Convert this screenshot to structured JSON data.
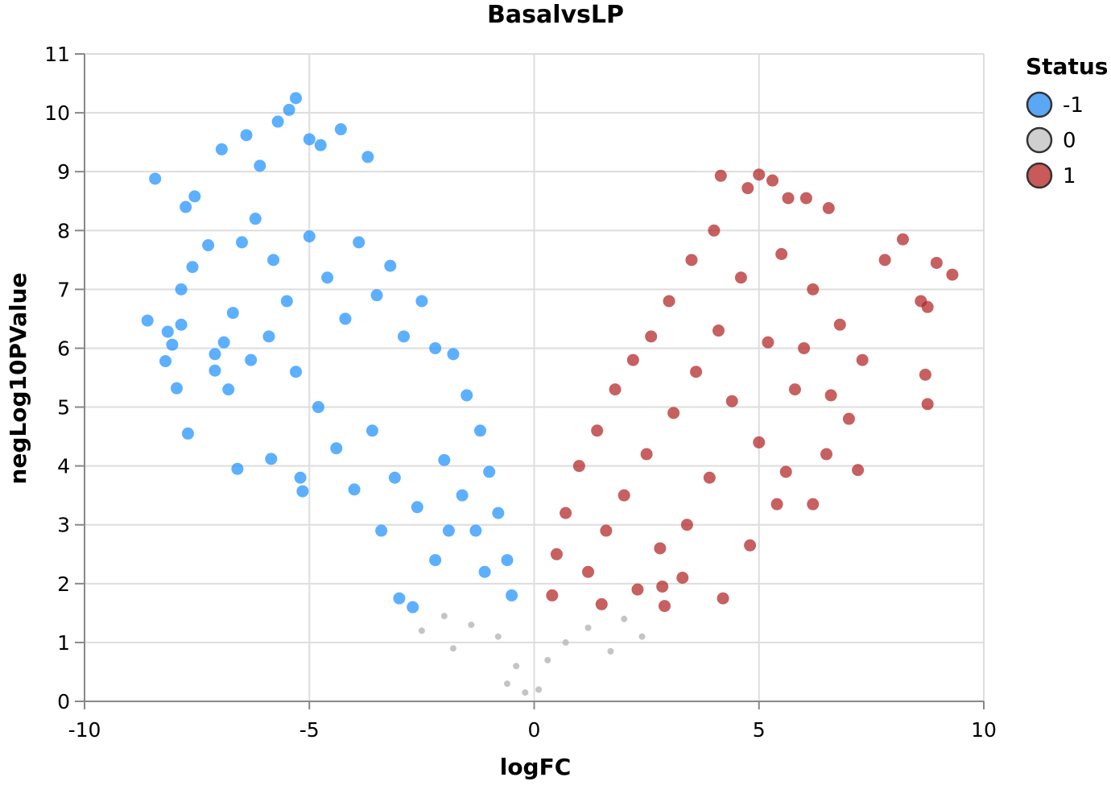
{
  "chart_data": {
    "type": "scatter",
    "title": "BasalvsLP",
    "xlabel": "logFC",
    "ylabel": "negLog10PValue",
    "xlim": [
      -10,
      10
    ],
    "ylim": [
      0,
      11
    ],
    "x_ticks": [
      "-10",
      "-5",
      "0",
      "5",
      "10"
    ],
    "y_ticks": [
      "0",
      "1",
      "2",
      "3",
      "4",
      "5",
      "6",
      "7",
      "8",
      "9",
      "10",
      "11"
    ],
    "grid": true,
    "legend": {
      "title": "Status",
      "position": "top-right",
      "items": [
        {
          "label": "-1",
          "color": "#5aa7f5"
        },
        {
          "label": "0",
          "color": "#cfcfcf"
        },
        {
          "label": "1",
          "color": "#c85a5a"
        }
      ]
    },
    "series": [
      {
        "name": "-1",
        "color": "#1e90ff",
        "points": [
          [
            -8.6,
            6.47
          ],
          [
            -8.43,
            8.88
          ],
          [
            -8.2,
            5.78
          ],
          [
            -8.15,
            6.28
          ],
          [
            -8.05,
            6.06
          ],
          [
            -7.95,
            5.32
          ],
          [
            -7.85,
            6.4
          ],
          [
            -7.75,
            8.4
          ],
          [
            -7.7,
            4.55
          ],
          [
            -7.6,
            7.38
          ],
          [
            -7.55,
            8.58
          ],
          [
            -7.1,
            5.62
          ],
          [
            -6.95,
            9.38
          ],
          [
            -6.6,
            3.95
          ],
          [
            -6.4,
            9.62
          ],
          [
            -6.1,
            9.1
          ],
          [
            -5.85,
            4.12
          ],
          [
            -5.7,
            9.85
          ],
          [
            -5.45,
            10.05
          ],
          [
            -5.3,
            10.25
          ],
          [
            -5.0,
            9.55
          ],
          [
            -4.75,
            9.45
          ],
          [
            -4.3,
            9.72
          ],
          [
            -3.7,
            9.25
          ],
          [
            -5.2,
            3.8
          ],
          [
            -5.15,
            3.57
          ],
          [
            -6.9,
            6.1
          ],
          [
            -6.8,
            5.3
          ],
          [
            -7.25,
            7.75
          ],
          [
            -7.85,
            7.0
          ],
          [
            -6.5,
            7.8
          ],
          [
            -6.2,
            8.2
          ],
          [
            -5.8,
            7.5
          ],
          [
            -5.5,
            6.8
          ],
          [
            -5.0,
            7.9
          ],
          [
            -4.6,
            7.2
          ],
          [
            -4.2,
            6.5
          ],
          [
            -3.9,
            7.8
          ],
          [
            -3.5,
            6.9
          ],
          [
            -3.2,
            7.4
          ],
          [
            -2.9,
            6.2
          ],
          [
            -2.5,
            6.8
          ],
          [
            -2.2,
            6.0
          ],
          [
            -1.8,
            5.9
          ],
          [
            -1.5,
            5.2
          ],
          [
            -1.2,
            4.6
          ],
          [
            -1.0,
            3.9
          ],
          [
            -0.8,
            3.2
          ],
          [
            -0.6,
            2.4
          ],
          [
            -0.5,
            1.8
          ],
          [
            -3.0,
            1.75
          ],
          [
            -2.7,
            1.6
          ],
          [
            -2.2,
            2.4
          ],
          [
            -1.9,
            2.9
          ],
          [
            -3.4,
            2.9
          ],
          [
            -4.0,
            3.6
          ],
          [
            -4.4,
            4.3
          ],
          [
            -4.8,
            5.0
          ],
          [
            -5.3,
            5.6
          ],
          [
            -5.9,
            6.2
          ],
          [
            -6.3,
            5.8
          ],
          [
            -6.7,
            6.6
          ],
          [
            -7.1,
            5.9
          ],
          [
            -3.6,
            4.6
          ],
          [
            -3.1,
            3.8
          ],
          [
            -2.6,
            3.3
          ],
          [
            -2.0,
            4.1
          ],
          [
            -1.6,
            3.5
          ],
          [
            -1.3,
            2.9
          ],
          [
            -1.1,
            2.2
          ]
        ]
      },
      {
        "name": "0",
        "color": "#bebebe",
        "points": [
          [
            -0.2,
            0.15
          ],
          [
            0.1,
            0.2
          ],
          [
            -0.4,
            0.6
          ],
          [
            0.3,
            0.7
          ],
          [
            -0.8,
            1.1
          ],
          [
            0.7,
            1.0
          ],
          [
            -1.4,
            1.3
          ],
          [
            1.2,
            1.25
          ],
          [
            -2.0,
            1.45
          ],
          [
            2.0,
            1.4
          ],
          [
            -2.5,
            1.2
          ],
          [
            2.4,
            1.1
          ],
          [
            -1.8,
            0.9
          ],
          [
            1.7,
            0.85
          ],
          [
            -0.6,
            0.3
          ]
        ]
      },
      {
        "name": "1",
        "color": "#b22222",
        "points": [
          [
            4.2,
            1.75
          ],
          [
            5.0,
            8.95
          ],
          [
            4.15,
            8.93
          ],
          [
            5.3,
            8.85
          ],
          [
            4.75,
            8.72
          ],
          [
            5.65,
            8.55
          ],
          [
            6.05,
            8.55
          ],
          [
            6.55,
            8.38
          ],
          [
            7.8,
            7.5
          ],
          [
            8.2,
            7.85
          ],
          [
            8.95,
            7.45
          ],
          [
            9.3,
            7.25
          ],
          [
            8.6,
            6.8
          ],
          [
            8.75,
            6.7
          ],
          [
            8.7,
            5.55
          ],
          [
            8.75,
            5.05
          ],
          [
            7.2,
            3.93
          ],
          [
            6.2,
            3.35
          ],
          [
            5.4,
            3.35
          ],
          [
            4.8,
            2.65
          ],
          [
            3.3,
            2.1
          ],
          [
            2.85,
            1.95
          ],
          [
            2.9,
            1.62
          ],
          [
            5.5,
            7.6
          ],
          [
            6.2,
            7.0
          ],
          [
            6.8,
            6.4
          ],
          [
            7.3,
            5.8
          ],
          [
            7.0,
            4.8
          ],
          [
            6.5,
            4.2
          ],
          [
            5.8,
            5.3
          ],
          [
            5.2,
            6.1
          ],
          [
            4.6,
            7.2
          ],
          [
            4.0,
            8.0
          ],
          [
            3.5,
            7.5
          ],
          [
            3.0,
            6.8
          ],
          [
            2.6,
            6.2
          ],
          [
            2.2,
            5.8
          ],
          [
            1.8,
            5.3
          ],
          [
            1.4,
            4.6
          ],
          [
            1.0,
            4.0
          ],
          [
            0.7,
            3.2
          ],
          [
            0.5,
            2.5
          ],
          [
            0.4,
            1.8
          ],
          [
            1.2,
            2.2
          ],
          [
            1.6,
            2.9
          ],
          [
            2.0,
            3.5
          ],
          [
            2.5,
            4.2
          ],
          [
            3.1,
            4.9
          ],
          [
            3.6,
            5.6
          ],
          [
            4.1,
            6.3
          ],
          [
            4.4,
            5.1
          ],
          [
            3.9,
            3.8
          ],
          [
            3.4,
            3.0
          ],
          [
            2.8,
            2.6
          ],
          [
            2.3,
            1.9
          ],
          [
            1.5,
            1.65
          ],
          [
            5.0,
            4.4
          ],
          [
            5.6,
            3.9
          ],
          [
            6.0,
            6.0
          ],
          [
            6.6,
            5.2
          ]
        ]
      }
    ]
  }
}
